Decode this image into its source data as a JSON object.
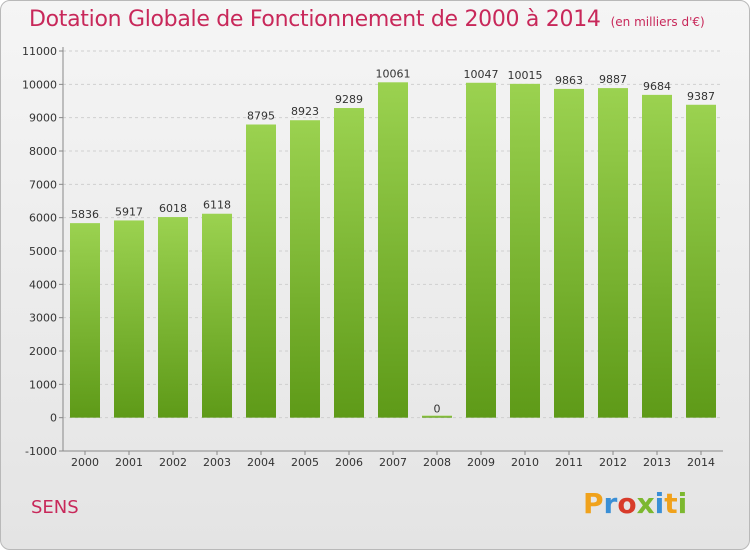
{
  "title": "Dotation Globale de Fonctionnement de 2000 à 2014",
  "unit": "(en milliers d'€)",
  "commune": "SENS",
  "brand": {
    "letters": [
      "P",
      "r",
      "o",
      "x",
      "i",
      "t",
      "i"
    ],
    "colors": [
      "#f0a21c",
      "#3a8fd6",
      "#d83b2a",
      "#7cb82f",
      "#3a8fd6",
      "#f0a21c",
      "#7cb82f"
    ]
  },
  "colors": {
    "title": "#c8285a",
    "bar_top": "#9bd250",
    "bar_bottom": "#5e9a18"
  },
  "chart_data": {
    "type": "bar",
    "categories": [
      "2000",
      "2001",
      "2002",
      "2003",
      "2004",
      "2005",
      "2006",
      "2007",
      "2008",
      "2009",
      "2010",
      "2011",
      "2012",
      "2013",
      "2014"
    ],
    "values": [
      5836,
      5917,
      6018,
      6118,
      8795,
      8923,
      9289,
      10061,
      0,
      10047,
      10015,
      9863,
      9887,
      9684,
      9387
    ],
    "data_labels": [
      "5836",
      "5917",
      "6018",
      "6118",
      "8795",
      "8923",
      "9289",
      "10061",
      "0",
      "10047",
      "10015",
      "9863",
      "9887",
      "9684",
      "9387"
    ],
    "yticks": [
      "-1000",
      "0",
      "1000",
      "2000",
      "3000",
      "4000",
      "5000",
      "6000",
      "7000",
      "8000",
      "9000",
      "10000",
      "11000"
    ],
    "ylim": [
      -1000,
      11000
    ],
    "grid": true
  }
}
